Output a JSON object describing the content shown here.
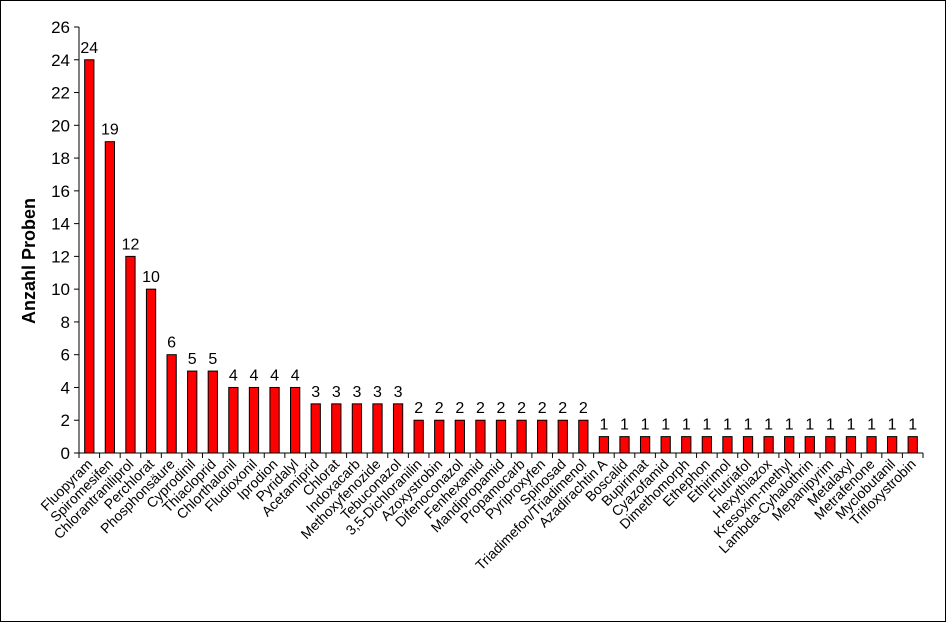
{
  "chart_data": {
    "type": "bar",
    "ylabel": "Anzahl Proben",
    "ylim": [
      0,
      26
    ],
    "ytick_step": 2,
    "grid": false,
    "legend": "none",
    "bar_color": "#ff0000",
    "bar_stroke": "#000000",
    "categories": [
      "Fluopyram",
      "Spiromesifen",
      "Chlorantraniliprol",
      "Perchlorat",
      "Phosphonsäure",
      "Cyprodinil",
      "Thiacloprid",
      "Chlorthalonil",
      "Fludioxonil",
      "Iprodion",
      "Pyridalyl",
      "Acetamiprid",
      "Chlorat",
      "Indoxacarb",
      "Methoxyfenozide",
      "Tebuconazol",
      "3,5-Dichloranilin",
      "Azoxystrobin",
      "Difenoconazol",
      "Fenhexamid",
      "Mandipropamid",
      "Propamocarb",
      "Pyriproxyfen",
      "Spinosad",
      "Triadimefon/Triadimenol",
      "Azadirachtin A",
      "Boscalid",
      "Bupirimat",
      "Cyazofamid",
      "Dimethomorph",
      "Ethephon",
      "Ethirimol",
      "Flutriafol",
      "Hexythiazox",
      "Kresoxim-methyl",
      "Lambda-Cyhalothrin",
      "Mepanipyrim",
      "Metalaxyl",
      "Metrafenone",
      "Myclobutanil",
      "Trifloxystrobin"
    ],
    "values": [
      24,
      19,
      12,
      10,
      6,
      5,
      5,
      4,
      4,
      4,
      4,
      3,
      3,
      3,
      3,
      3,
      2,
      2,
      2,
      2,
      2,
      2,
      2,
      2,
      2,
      1,
      1,
      1,
      1,
      1,
      1,
      1,
      1,
      1,
      1,
      1,
      1,
      1,
      1,
      1,
      1
    ]
  }
}
